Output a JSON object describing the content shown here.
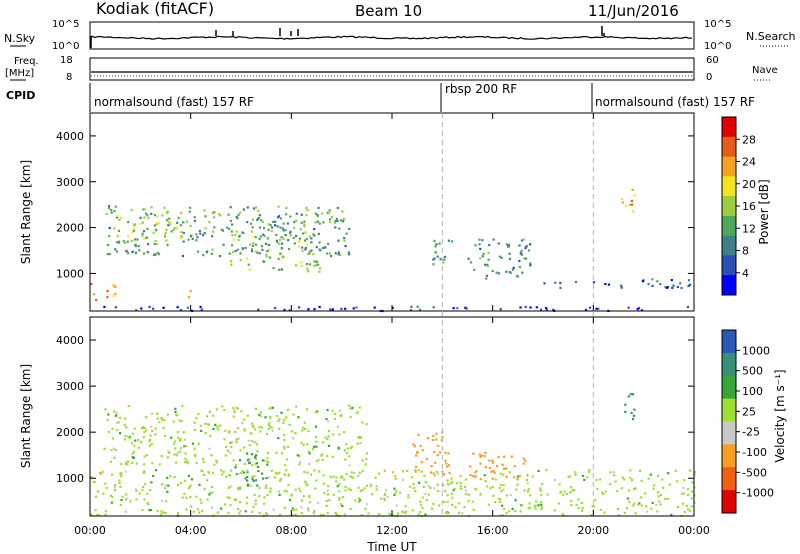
{
  "header": {
    "station": "Kodiak (fitACF)",
    "beam": "Beam 10",
    "date": "11/Jun/2016"
  },
  "panels": {
    "nsky": {
      "label": "N.Sky",
      "tick_top": "10^5",
      "tick_bottom": "10^0",
      "right_label": "N.Search",
      "right_tick_top": "10^5",
      "right_tick_bottom": "10^0"
    },
    "freq": {
      "label_line1": "Freq.",
      "label_line2": "[MHz]",
      "tick_top": "18",
      "tick_bottom": "8",
      "right_label": "Nave",
      "right_tick_top": "60",
      "right_tick_bottom": "0"
    },
    "cpid": {
      "label": "CPID",
      "segments": [
        {
          "text": "normalsound (fast) 157 RF",
          "start_h": 0,
          "end_h": 14
        },
        {
          "text": "rbsp 200 RF",
          "start_h": 14,
          "end_h": 20
        },
        {
          "text": "normalsound (fast) 157 RF",
          "start_h": 20,
          "end_h": 24
        }
      ]
    }
  },
  "colors": {
    "power": [
      "#0000ff",
      "#2a4fb5",
      "#3d7f8a",
      "#4fa85a",
      "#9ccd3c",
      "#f4e31f",
      "#f4a21f",
      "#e85a1b",
      "#e00000"
    ],
    "velocity": [
      "#e00000",
      "#f06010",
      "#f5a020",
      "#c8c8c8",
      "#9de02f",
      "#35a535",
      "#3a8f7a",
      "#2a58b5"
    ],
    "boundary": "#b4b4b4"
  },
  "chart_data": [
    {
      "type": "heatmap",
      "name": "power",
      "ylabel": "Slant Range [km]",
      "xlabel": "Time UT",
      "x_ticks": [
        "00:00",
        "04:00",
        "08:00",
        "12:00",
        "16:00",
        "20:00",
        "00:00"
      ],
      "x_range_hours": [
        0,
        24
      ],
      "ylim": [
        180,
        4500
      ],
      "y_ticks": [
        1000,
        2000,
        3000,
        4000
      ],
      "colorbar": {
        "label": "Power [dB]",
        "range": [
          0,
          32
        ],
        "ticks": [
          "4",
          "8",
          "12",
          "16",
          "20",
          "24",
          "28"
        ]
      },
      "features": [
        {
          "t0": 0.6,
          "t1": 10.3,
          "r0": 1400,
          "r1": 2500,
          "level": 12
        },
        {
          "t0": 1.0,
          "t1": 4.0,
          "r0": 1700,
          "r1": 2300,
          "level": 16
        },
        {
          "t0": 5.5,
          "t1": 9.0,
          "r0": 1100,
          "r1": 2000,
          "level": 14
        },
        {
          "t0": 0.0,
          "t1": 1.0,
          "r0": 400,
          "r1": 800,
          "level": 22
        },
        {
          "t0": 3.8,
          "t1": 4.2,
          "r0": 500,
          "r1": 700,
          "level": 26
        },
        {
          "t0": 8.6,
          "t1": 9.2,
          "r0": 1000,
          "r1": 1300,
          "level": 18
        },
        {
          "t0": 13.5,
          "t1": 14.4,
          "r0": 1200,
          "r1": 1900,
          "level": 12
        },
        {
          "t0": 15.0,
          "t1": 17.5,
          "r0": 900,
          "r1": 1800,
          "level": 10
        },
        {
          "t0": 21.0,
          "t1": 21.6,
          "r0": 2300,
          "r1": 2900,
          "level": 22
        },
        {
          "t0": 18.0,
          "t1": 24.0,
          "r0": 700,
          "r1": 900,
          "level": 6
        },
        {
          "t0": 0.0,
          "t1": 24.0,
          "r0": 200,
          "r1": 300,
          "level": 4
        }
      ]
    },
    {
      "type": "heatmap",
      "name": "velocity",
      "ylabel": "Slant Range [km]",
      "xlabel": "Time UT",
      "x_ticks": [
        "00:00",
        "04:00",
        "08:00",
        "12:00",
        "16:00",
        "20:00",
        "00:00"
      ],
      "x_range_hours": [
        0,
        24
      ],
      "ylim": [
        180,
        4500
      ],
      "y_ticks": [
        1000,
        2000,
        3000,
        4000
      ],
      "colorbar": {
        "label": "Velocity [m s⁻¹]",
        "ticks": [
          "-1000",
          "-500",
          "-100",
          "-25",
          "25",
          "100",
          "500",
          "1000"
        ]
      },
      "features": [
        {
          "t0": 0.5,
          "t1": 11.0,
          "r0": 1300,
          "r1": 2600,
          "level": 0
        },
        {
          "t0": 5.7,
          "t1": 7.0,
          "r0": 800,
          "r1": 1600,
          "level": 100
        },
        {
          "t0": 12.8,
          "t1": 14.3,
          "r0": 1100,
          "r1": 2100,
          "level": -300
        },
        {
          "t0": 15.0,
          "t1": 17.5,
          "r0": 1000,
          "r1": 1600,
          "level": -300
        },
        {
          "t0": 21.0,
          "t1": 21.6,
          "r0": 2300,
          "r1": 2900,
          "level": 300
        },
        {
          "t0": 0.0,
          "t1": 24.0,
          "r0": 200,
          "r1": 1200,
          "level": 0
        }
      ]
    }
  ]
}
